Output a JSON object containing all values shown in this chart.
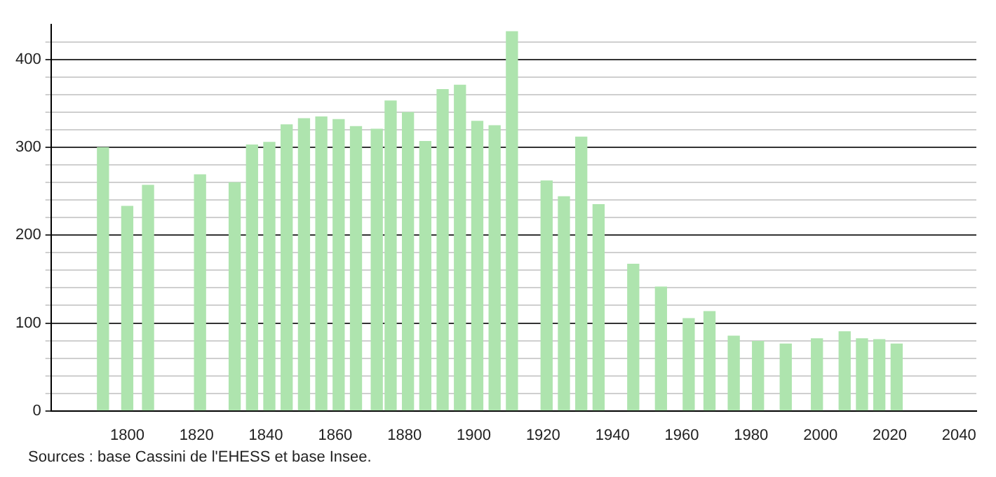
{
  "chart_data": {
    "type": "bar",
    "x": [
      1793,
      1800,
      1806,
      1821,
      1831,
      1836,
      1841,
      1846,
      1851,
      1856,
      1861,
      1866,
      1872,
      1876,
      1881,
      1886,
      1891,
      1896,
      1901,
      1906,
      1911,
      1921,
      1926,
      1931,
      1936,
      1946,
      1954,
      1962,
      1968,
      1975,
      1982,
      1990,
      1999,
      2007,
      2012,
      2017,
      2022
    ],
    "values": [
      300,
      233,
      257,
      269,
      260,
      303,
      306,
      326,
      333,
      335,
      332,
      324,
      321,
      353,
      340,
      307,
      366,
      371,
      330,
      325,
      432,
      262,
      244,
      312,
      235,
      167,
      141,
      105,
      113,
      85,
      79,
      76,
      82,
      90,
      82,
      81,
      76
    ],
    "color": "#aee4ae",
    "xlim": [
      1778,
      2045
    ],
    "xticks": [
      1800,
      1820,
      1840,
      1860,
      1880,
      1900,
      1920,
      1940,
      1960,
      1980,
      2000,
      2020,
      2040
    ],
    "ylim": [
      0,
      440
    ],
    "yticks": [
      0,
      {
        "value": 20,
        "label": null
      },
      {
        "value": 40,
        "label": null
      },
      {
        "value": 60,
        "label": null
      },
      {
        "value": 80,
        "label": null
      },
      100,
      {
        "value": 120,
        "label": null
      },
      {
        "value": 140,
        "label": null
      },
      {
        "value": 160,
        "label": null
      },
      {
        "value": 180,
        "label": null
      },
      200,
      {
        "value": 220,
        "label": null
      },
      {
        "value": 240,
        "label": null
      },
      {
        "value": 260,
        "label": null
      },
      {
        "value": 280,
        "label": null
      },
      300,
      {
        "value": 320,
        "label": null
      },
      {
        "value": 340,
        "label": null
      },
      {
        "value": 360,
        "label": null
      },
      {
        "value": 380,
        "label": null
      },
      400,
      {
        "value": 420,
        "label": null
      }
    ],
    "grid": "y",
    "legend": false,
    "annotations": [
      "Sources : base Cassini de l'EHESS et base Insee."
    ]
  }
}
